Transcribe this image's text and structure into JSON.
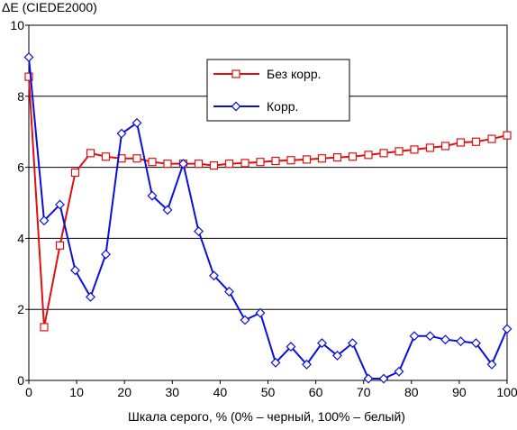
{
  "chart_data": {
    "type": "line",
    "ylabel": "ΔE (CIEDE2000)",
    "xlabel": "Шкала серого, % (0% – черный, 100% – белый)",
    "xlim": [
      0,
      100
    ],
    "ylim": [
      0,
      10
    ],
    "x_ticks": [
      0,
      10,
      20,
      30,
      40,
      50,
      60,
      70,
      80,
      90,
      100
    ],
    "y_ticks": [
      0,
      2,
      4,
      6,
      8,
      10
    ],
    "grid": "horizontal",
    "legend_position": "top-center-right",
    "x": [
      0,
      3.2,
      6.5,
      9.7,
      12.9,
      16.1,
      19.4,
      22.6,
      25.8,
      29.0,
      32.3,
      35.5,
      38.7,
      41.9,
      45.2,
      48.4,
      51.6,
      54.8,
      58.1,
      61.3,
      64.5,
      67.7,
      71.0,
      74.2,
      77.4,
      80.6,
      83.9,
      87.1,
      90.3,
      93.5,
      96.8,
      100
    ],
    "series": [
      {
        "name": "Без корр.",
        "color": "#e01010",
        "marker": "square",
        "values": [
          8.55,
          1.5,
          3.8,
          5.85,
          6.4,
          6.3,
          6.25,
          6.25,
          6.15,
          6.1,
          6.1,
          6.1,
          6.05,
          6.1,
          6.12,
          6.15,
          6.18,
          6.2,
          6.22,
          6.25,
          6.28,
          6.3,
          6.35,
          6.4,
          6.45,
          6.5,
          6.55,
          6.6,
          6.7,
          6.72,
          6.8,
          6.9
        ]
      },
      {
        "name": "Корр.",
        "color": "#0a10d8",
        "marker": "diamond",
        "values": [
          9.1,
          4.5,
          4.95,
          3.1,
          2.35,
          3.55,
          6.95,
          7.25,
          5.2,
          4.8,
          6.1,
          4.2,
          2.95,
          2.5,
          1.7,
          1.9,
          0.5,
          0.95,
          0.45,
          1.05,
          0.7,
          1.05,
          0.05,
          0.05,
          0.25,
          1.25,
          1.25,
          1.15,
          1.1,
          1.05,
          0.45,
          1.45
        ]
      }
    ]
  }
}
